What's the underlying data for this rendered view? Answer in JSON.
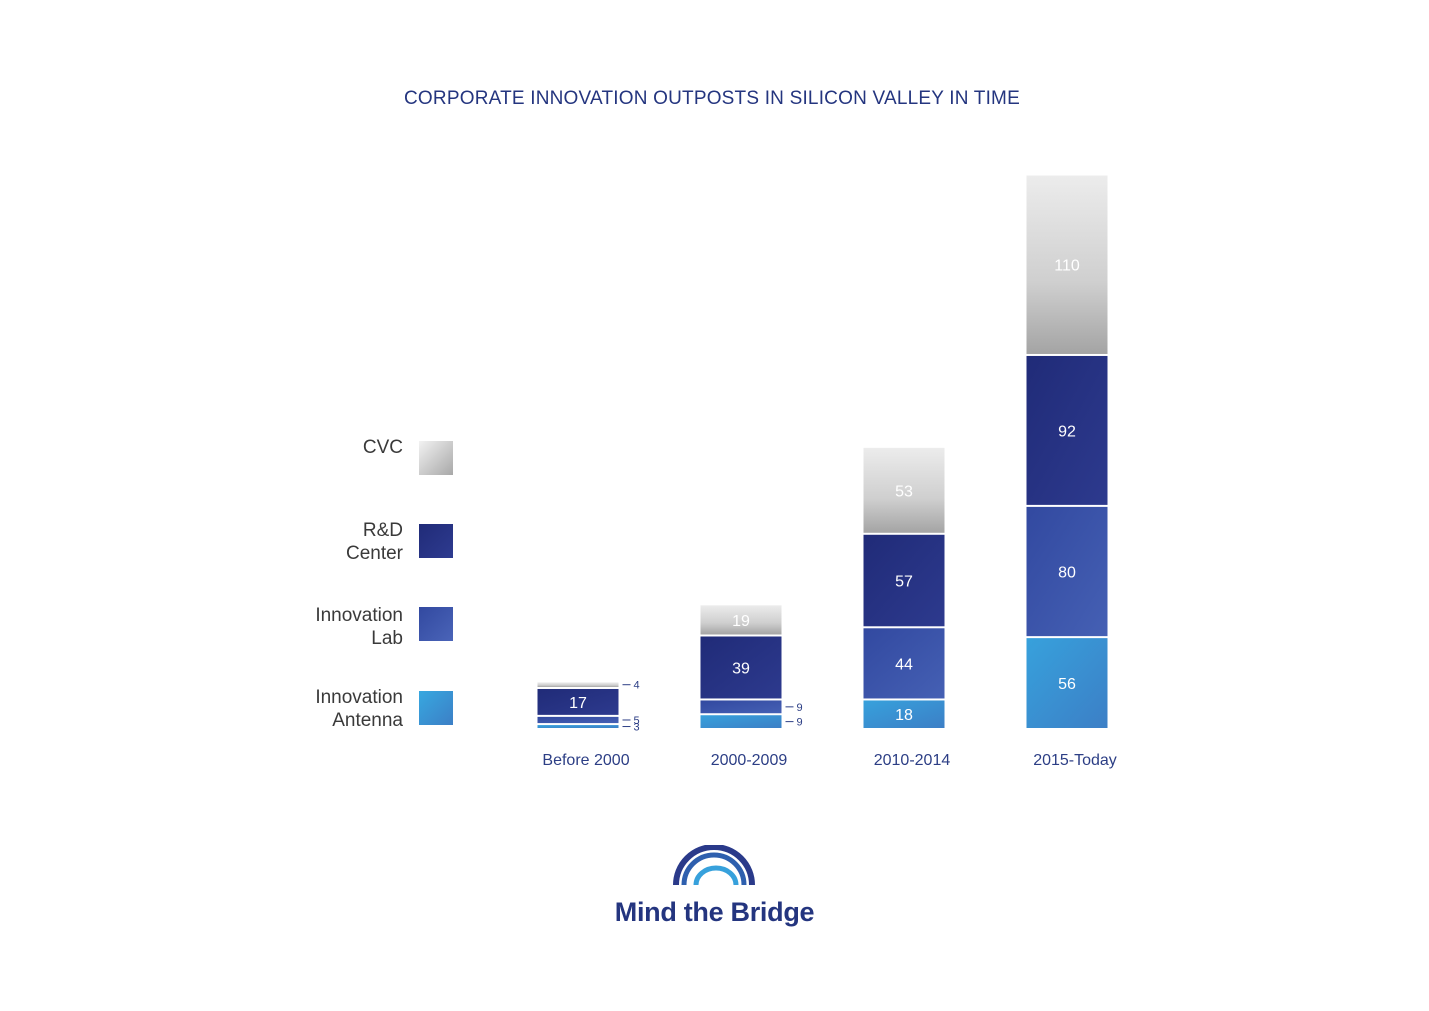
{
  "chart_data": {
    "type": "bar",
    "stacked": true,
    "title": "CORPORATE INNOVATION OUTPOSTS IN SILICON VALLEY IN TIME",
    "categories": [
      "Before 2000",
      "2000-2009",
      "2010-2014",
      "2015-Today"
    ],
    "series": [
      {
        "name": "Innovation Antenna",
        "values": [
          3,
          9,
          18,
          56
        ]
      },
      {
        "name": "Innovation Lab",
        "values": [
          5,
          9,
          44,
          80
        ]
      },
      {
        "name": "R&D Center",
        "values": [
          17,
          39,
          57,
          92
        ]
      },
      {
        "name": "CVC",
        "values": [
          4,
          19,
          53,
          110
        ]
      }
    ],
    "legend": [
      "CVC",
      "R&D\nCenter",
      "Innovation\nLab",
      "Innovation\nAntenna"
    ],
    "legend_position": "left",
    "ylim": [
      0,
      340
    ],
    "grid": false
  },
  "colors": {
    "cvc": "#c9c9c9",
    "rd_center": "#2a3282",
    "innovation_lab": "#3c55a8",
    "innovation_antenna": "#3a93d2",
    "title": "#24357f",
    "axis_label": "#2c3e85"
  },
  "logo": {
    "text": "Mind the Bridge",
    "icon": "bridge-arcs-icon"
  }
}
